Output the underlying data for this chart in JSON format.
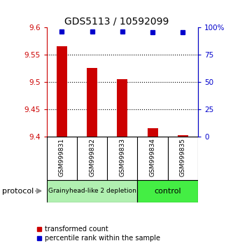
{
  "title": "GDS5113 / 10592099",
  "samples": [
    "GSM999831",
    "GSM999832",
    "GSM999833",
    "GSM999834",
    "GSM999835"
  ],
  "red_values": [
    9.565,
    9.525,
    9.505,
    9.415,
    9.402
  ],
  "blue_values": [
    96,
    96,
    96,
    95.5,
    95.5
  ],
  "ylim_left": [
    9.4,
    9.6
  ],
  "ylim_right": [
    0,
    100
  ],
  "yticks_left": [
    9.4,
    9.45,
    9.5,
    9.55,
    9.6
  ],
  "yticks_right": [
    0,
    25,
    50,
    75,
    100
  ],
  "ytick_labels_right": [
    "0",
    "25",
    "50",
    "75",
    "100%"
  ],
  "hlines": [
    9.45,
    9.5,
    9.55
  ],
  "groups": [
    {
      "label": "Grainyhead-like 2 depletion",
      "start": 0,
      "end": 3,
      "color": "#b0f0b0"
    },
    {
      "label": "control",
      "start": 3,
      "end": 5,
      "color": "#44ee44"
    }
  ],
  "bar_color": "#cc0000",
  "marker_color": "#0000cc",
  "bar_width": 0.35,
  "left_axis_color": "#cc0000",
  "right_axis_color": "#0000cc",
  "legend_red_label": "transformed count",
  "legend_blue_label": "percentile rank within the sample",
  "protocol_label": "protocol",
  "background_color": "#ffffff",
  "label_area_color": "#cccccc"
}
